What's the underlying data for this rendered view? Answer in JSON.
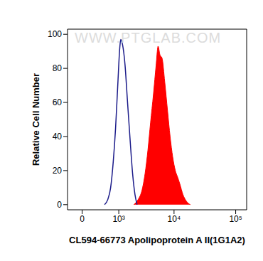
{
  "chart_data": {
    "type": "line",
    "annotations": [
      "WWW.PTGLAB.COM"
    ],
    "x_label": "CL594-66773 Apolipoprotein A II(1G1A2)",
    "y_label": "Relative Cell Number",
    "xlim": [
      -250,
      150000
    ],
    "xticks": [
      0,
      {
        "value": 1000,
        "label": "10³"
      },
      {
        "value": 10000,
        "label": "10⁴"
      },
      {
        "value": 100000,
        "label": "10⁵"
      }
    ],
    "ylim": [
      -3,
      103
    ],
    "yticks": [
      0,
      20,
      40,
      60,
      80,
      100
    ],
    "grid": false,
    "series": [
      {
        "type": "line",
        "color": "#1c1c8a",
        "x": [
          450,
          550,
          650,
          750,
          850,
          950,
          1050,
          1100,
          1200,
          1350,
          1500,
          1700,
          1900,
          2100,
          2300
        ],
        "values": [
          0,
          3,
          10,
          25,
          45,
          70,
          92,
          97,
          94,
          82,
          62,
          38,
          18,
          6,
          0
        ]
      },
      {
        "type": "area",
        "color": "#ff0000",
        "x": [
          2000,
          2400,
          2800,
          3200,
          3600,
          4000,
          4500,
          5000,
          5400,
          5800,
          6300,
          7000,
          7800,
          8600,
          9500,
          10500,
          11500,
          12500,
          14000,
          16000,
          18500
        ],
        "values": [
          0,
          3,
          8,
          18,
          32,
          48,
          65,
          82,
          93,
          88,
          86,
          72,
          55,
          40,
          28,
          20,
          16,
          12,
          6,
          2,
          0
        ]
      }
    ]
  }
}
